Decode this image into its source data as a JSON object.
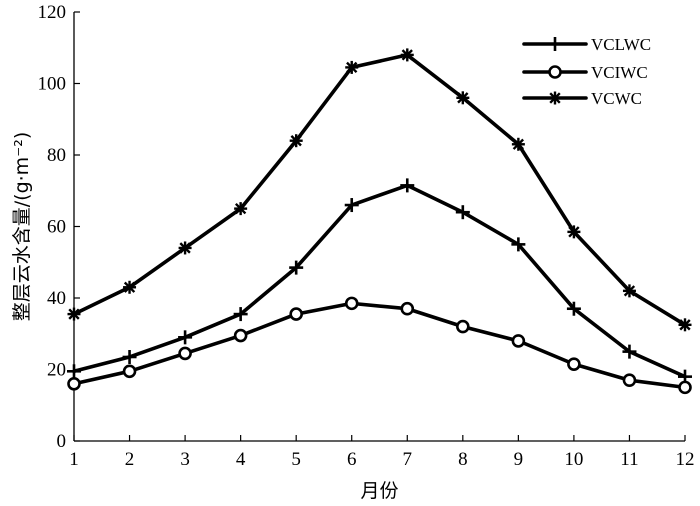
{
  "chart_data": {
    "type": "line",
    "x": [
      1,
      2,
      3,
      4,
      5,
      6,
      7,
      8,
      9,
      10,
      11,
      12
    ],
    "xlabel": "月份",
    "ylabel": "整层云水含量/(g·m⁻²)",
    "ylim": [
      0,
      120
    ],
    "xlim": [
      1,
      12
    ],
    "yticks": [
      0,
      20,
      40,
      60,
      80,
      100,
      120
    ],
    "xticks": [
      1,
      2,
      3,
      4,
      5,
      6,
      7,
      8,
      9,
      10,
      11,
      12
    ],
    "grid": false,
    "legend_position": "top-right",
    "series": [
      {
        "name": "VCLWC",
        "marker": "plus",
        "values": [
          19.5,
          23.5,
          29,
          35.5,
          48.5,
          66,
          71.5,
          64,
          55,
          37,
          25,
          18
        ]
      },
      {
        "name": "VCIWC",
        "marker": "circle",
        "values": [
          16,
          19.5,
          24.5,
          29.5,
          35.5,
          38.5,
          37,
          32,
          28,
          21.5,
          17,
          15
        ]
      },
      {
        "name": "VCWC",
        "marker": "asterisk",
        "values": [
          35.5,
          43,
          54,
          65,
          84,
          104.5,
          108,
          96,
          83,
          58.5,
          42,
          32.5
        ]
      }
    ]
  }
}
